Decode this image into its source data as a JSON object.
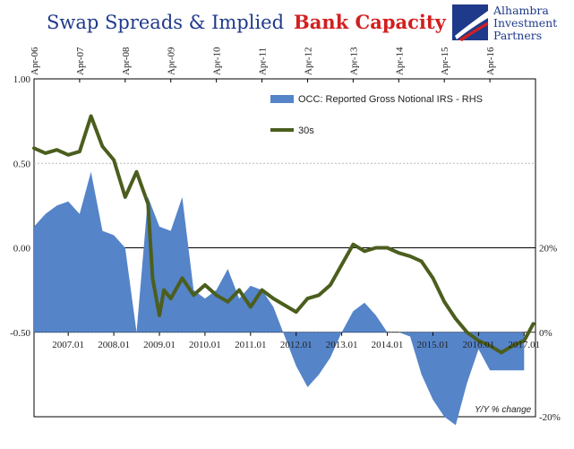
{
  "title": {
    "main": "Swap Spreads & Implied",
    "accent": "Bank Capacity"
  },
  "logo": {
    "line1": "Alhambra",
    "line2": "Investment",
    "line3": "Partners"
  },
  "colors": {
    "line": "#4b5e1e",
    "area": "#5584c8",
    "title": "#1f3a8a",
    "accent": "#d21f1f",
    "grid": "#b9b9b9",
    "zero": "#000000"
  },
  "chart_data": {
    "type": "line+area",
    "top_x_ticks": [
      "Apr-06",
      "Apr-07",
      "Apr-08",
      "Apr-09",
      "Apr-10",
      "Apr-11",
      "Apr-12",
      "Apr-13",
      "Apr-14",
      "Apr-15",
      "Apr-16"
    ],
    "bottom_x_ticks": [
      "2007.01",
      "2008.01",
      "2009.01",
      "2010.01",
      "2011.01",
      "2012.01",
      "2013.01",
      "2014.01",
      "2015.01",
      "2016.01",
      "2017.01"
    ],
    "left_axis": {
      "ylim": [
        -1.0,
        1.0
      ],
      "ticks": [
        "1.00",
        "0.50",
        "0.00",
        "-0.50"
      ]
    },
    "right_axis": {
      "ylim": [
        -20,
        60
      ],
      "ticks": [
        "20%",
        "0%",
        "-20%"
      ],
      "note": "Y/Y % change"
    },
    "legend": [
      "OCC: Reported Gross Notional IRS - RHS",
      "30s"
    ],
    "series": [
      {
        "name": "30s",
        "kind": "line",
        "axis": "left",
        "x": [
          2006.25,
          2006.5,
          2006.75,
          2007.0,
          2007.25,
          2007.5,
          2007.75,
          2008.0,
          2008.25,
          2008.5,
          2008.75,
          2008.85,
          2009.0,
          2009.1,
          2009.25,
          2009.5,
          2009.75,
          2010.0,
          2010.25,
          2010.5,
          2010.75,
          2011.0,
          2011.25,
          2011.5,
          2011.75,
          2012.0,
          2012.25,
          2012.5,
          2012.75,
          2013.0,
          2013.25,
          2013.5,
          2013.75,
          2014.0,
          2014.25,
          2014.5,
          2014.75,
          2015.0,
          2015.25,
          2015.5,
          2015.75,
          2016.0,
          2016.25,
          2016.5,
          2016.75,
          2017.0,
          2017.2
        ],
        "y": [
          0.59,
          0.56,
          0.58,
          0.55,
          0.57,
          0.78,
          0.6,
          0.52,
          0.3,
          0.45,
          0.26,
          -0.18,
          -0.4,
          -0.25,
          -0.3,
          -0.18,
          -0.28,
          -0.22,
          -0.28,
          -0.32,
          -0.25,
          -0.35,
          -0.25,
          -0.3,
          -0.34,
          -0.38,
          -0.3,
          -0.28,
          -0.22,
          -0.1,
          0.02,
          -0.02,
          0.0,
          0.0,
          -0.03,
          -0.05,
          -0.08,
          -0.18,
          -0.32,
          -0.42,
          -0.5,
          -0.55,
          -0.58,
          -0.62,
          -0.58,
          -0.55,
          -0.45
        ]
      },
      {
        "name": "OCC: Reported Gross Notional IRS - RHS",
        "kind": "area",
        "axis": "right",
        "x": [
          2006.25,
          2006.5,
          2006.75,
          2007.0,
          2007.25,
          2007.5,
          2007.75,
          2008.0,
          2008.25,
          2008.5,
          2008.75,
          2009.0,
          2009.25,
          2009.5,
          2009.75,
          2010.0,
          2010.25,
          2010.5,
          2010.75,
          2011.0,
          2011.25,
          2011.5,
          2011.75,
          2012.0,
          2012.25,
          2012.5,
          2012.75,
          2013.0,
          2013.25,
          2013.5,
          2013.75,
          2014.0,
          2014.25,
          2014.5,
          2014.75,
          2015.0,
          2015.25,
          2015.5,
          2015.75,
          2016.0,
          2016.25,
          2016.5,
          2016.75,
          2017.0
        ],
        "y": [
          25,
          28,
          30,
          31,
          28,
          38,
          24,
          23,
          20,
          0,
          32,
          25,
          24,
          32,
          10,
          8,
          10,
          15,
          8,
          11,
          10,
          6,
          -1,
          -8,
          -13,
          -10,
          -6,
          0,
          5,
          7,
          4,
          0,
          0,
          -1,
          -10,
          -16,
          -20,
          -22,
          -12,
          -4,
          -9,
          -9,
          -9,
          -9
        ]
      }
    ]
  }
}
